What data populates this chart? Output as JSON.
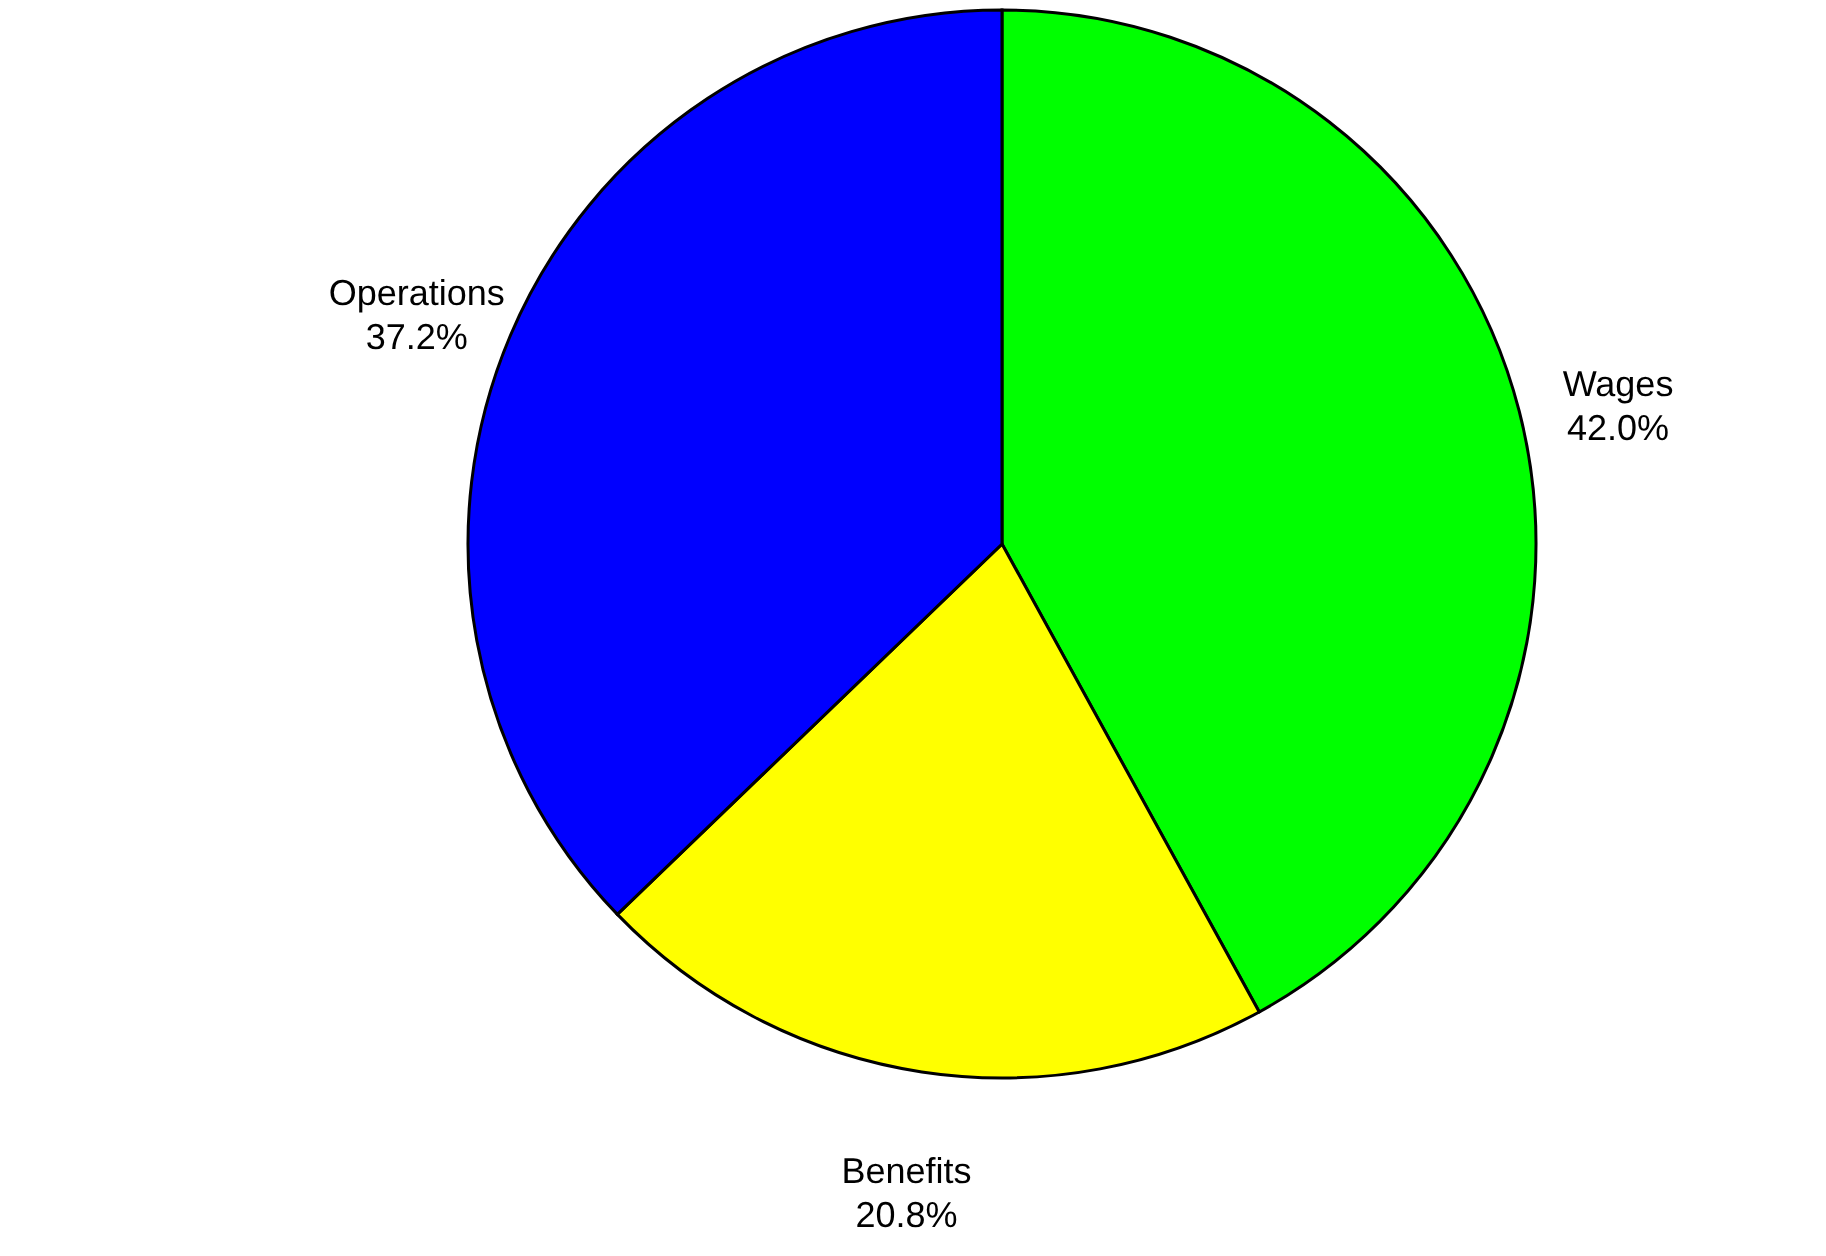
{
  "chart_data": {
    "type": "pie",
    "categories": [
      "Wages",
      "Benefits",
      "Operations"
    ],
    "values": [
      42.0,
      20.8,
      37.2
    ],
    "colors": [
      "#00ff00",
      "#ffff00",
      "#0000ff"
    ],
    "value_labels": [
      "42.0%",
      "20.8%",
      "37.2%"
    ]
  }
}
